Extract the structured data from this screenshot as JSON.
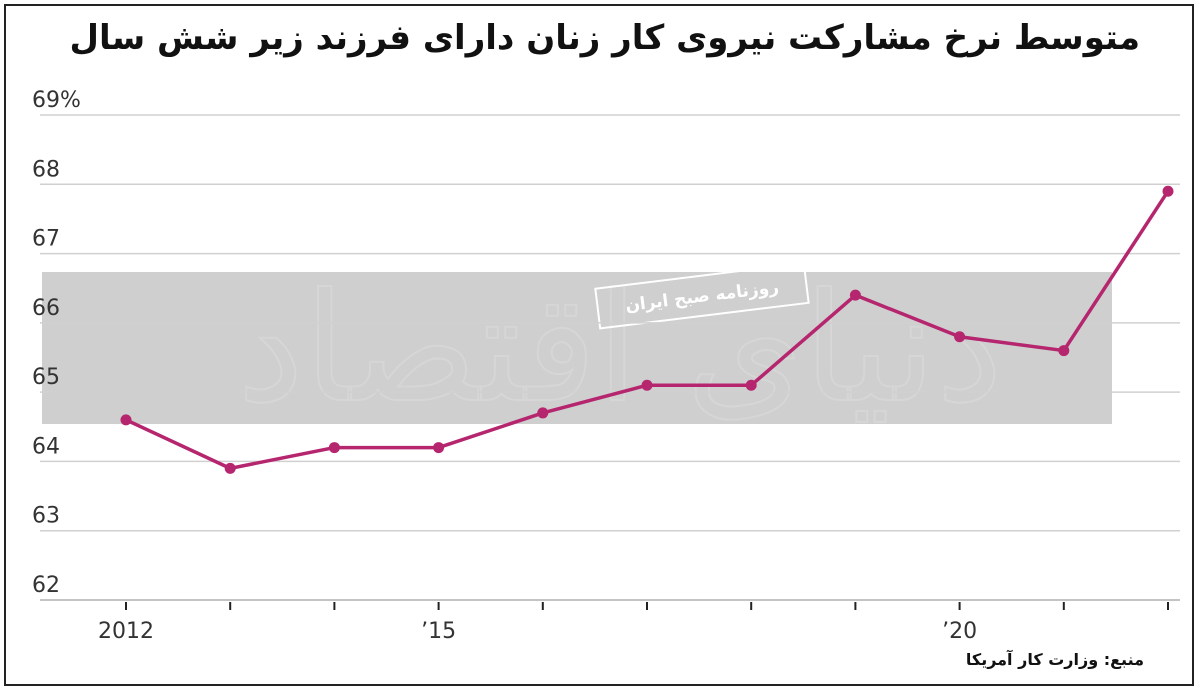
{
  "chart_data": {
    "type": "line",
    "title": "متوسط نرخ مشارکت نیروی کار زنان دارای فرزند زیر شش سال",
    "x": [
      2012,
      2013,
      2014,
      2015,
      2016,
      2017,
      2018,
      2019,
      2020,
      2021,
      2022
    ],
    "x_tick_labels": [
      {
        "x": 2012,
        "label": "2012"
      },
      {
        "x": 2015,
        "label": "’15"
      },
      {
        "x": 2020,
        "label": "’20"
      }
    ],
    "y_ticks": [
      62,
      63,
      64,
      65,
      66,
      67,
      68,
      69
    ],
    "y_tick_labels": [
      "62",
      "63",
      "64",
      "65",
      "66",
      "67",
      "68",
      "69%"
    ],
    "ylim": [
      62,
      69
    ],
    "series": [
      {
        "values": [
          64.6,
          63.9,
          64.2,
          64.2,
          64.7,
          65.1,
          65.1,
          66.4,
          65.8,
          65.6,
          67.9
        ],
        "color": "#b5266f"
      }
    ],
    "grid": true,
    "xlabel": "",
    "ylabel": ""
  },
  "source": "منبع: وزارت کار آمریکا",
  "watermark": {
    "publisher": "دنیای اقتصاد",
    "tagline": "روزنامه صبح ایران"
  },
  "colors": {
    "line": "#b5266f",
    "grid": "#d0d0d0",
    "band": "#cfcfcf"
  }
}
